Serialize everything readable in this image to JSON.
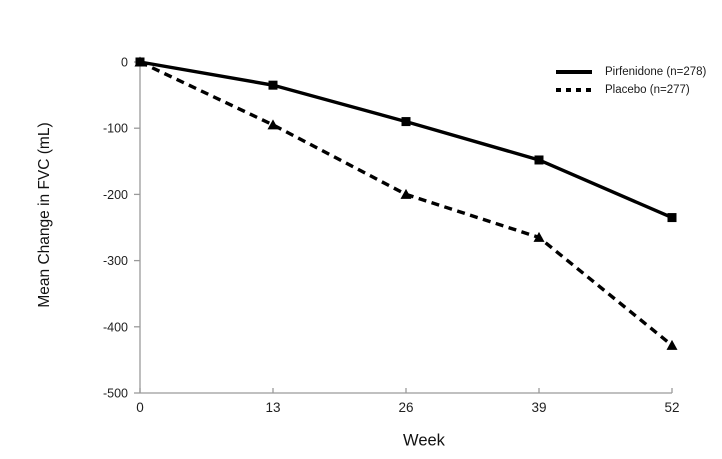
{
  "chart_data": {
    "type": "line",
    "title": "",
    "xlabel": "Week",
    "ylabel": "Mean Change in FVC (mL)",
    "x": [
      0,
      13,
      26,
      39,
      52
    ],
    "xticks": [
      0,
      13,
      26,
      39,
      52
    ],
    "yticks": [
      0,
      -100,
      -200,
      -300,
      -400,
      -500
    ],
    "xlim": [
      0,
      52
    ],
    "ylim": [
      -500,
      0
    ],
    "grid": false,
    "legend_position": "top-right",
    "axis_color": "#9a9a9a",
    "text_color": "#1f1f1f",
    "series": [
      {
        "name": "Pirfenidone (n=278)",
        "values": [
          0,
          -35,
          -90,
          -148,
          -235
        ],
        "line_style": "solid",
        "marker": "square",
        "color": "#000000"
      },
      {
        "name": "Placebo (n=277)",
        "values": [
          0,
          -95,
          -200,
          -265,
          -428
        ],
        "line_style": "dashed",
        "marker": "triangle",
        "color": "#000000"
      }
    ]
  }
}
